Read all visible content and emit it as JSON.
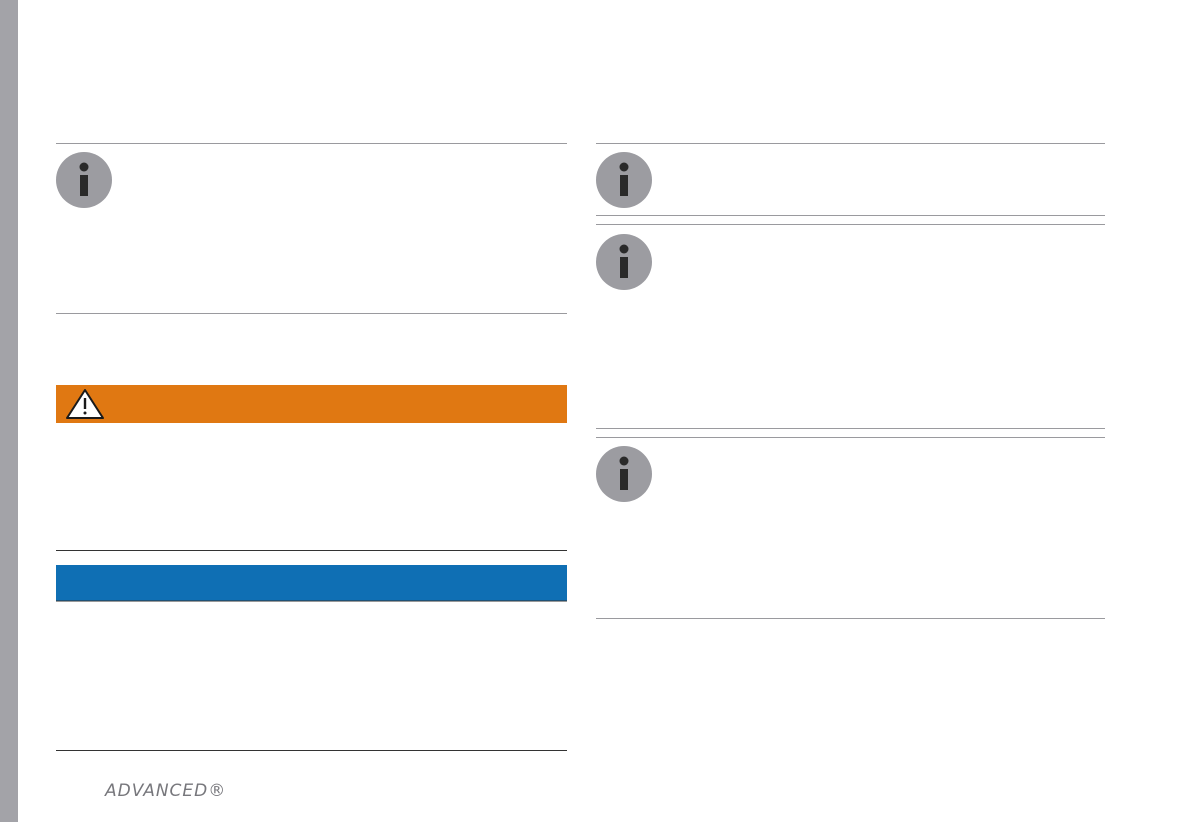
{
  "footer": {
    "logo": "ADVANCED®"
  }
}
